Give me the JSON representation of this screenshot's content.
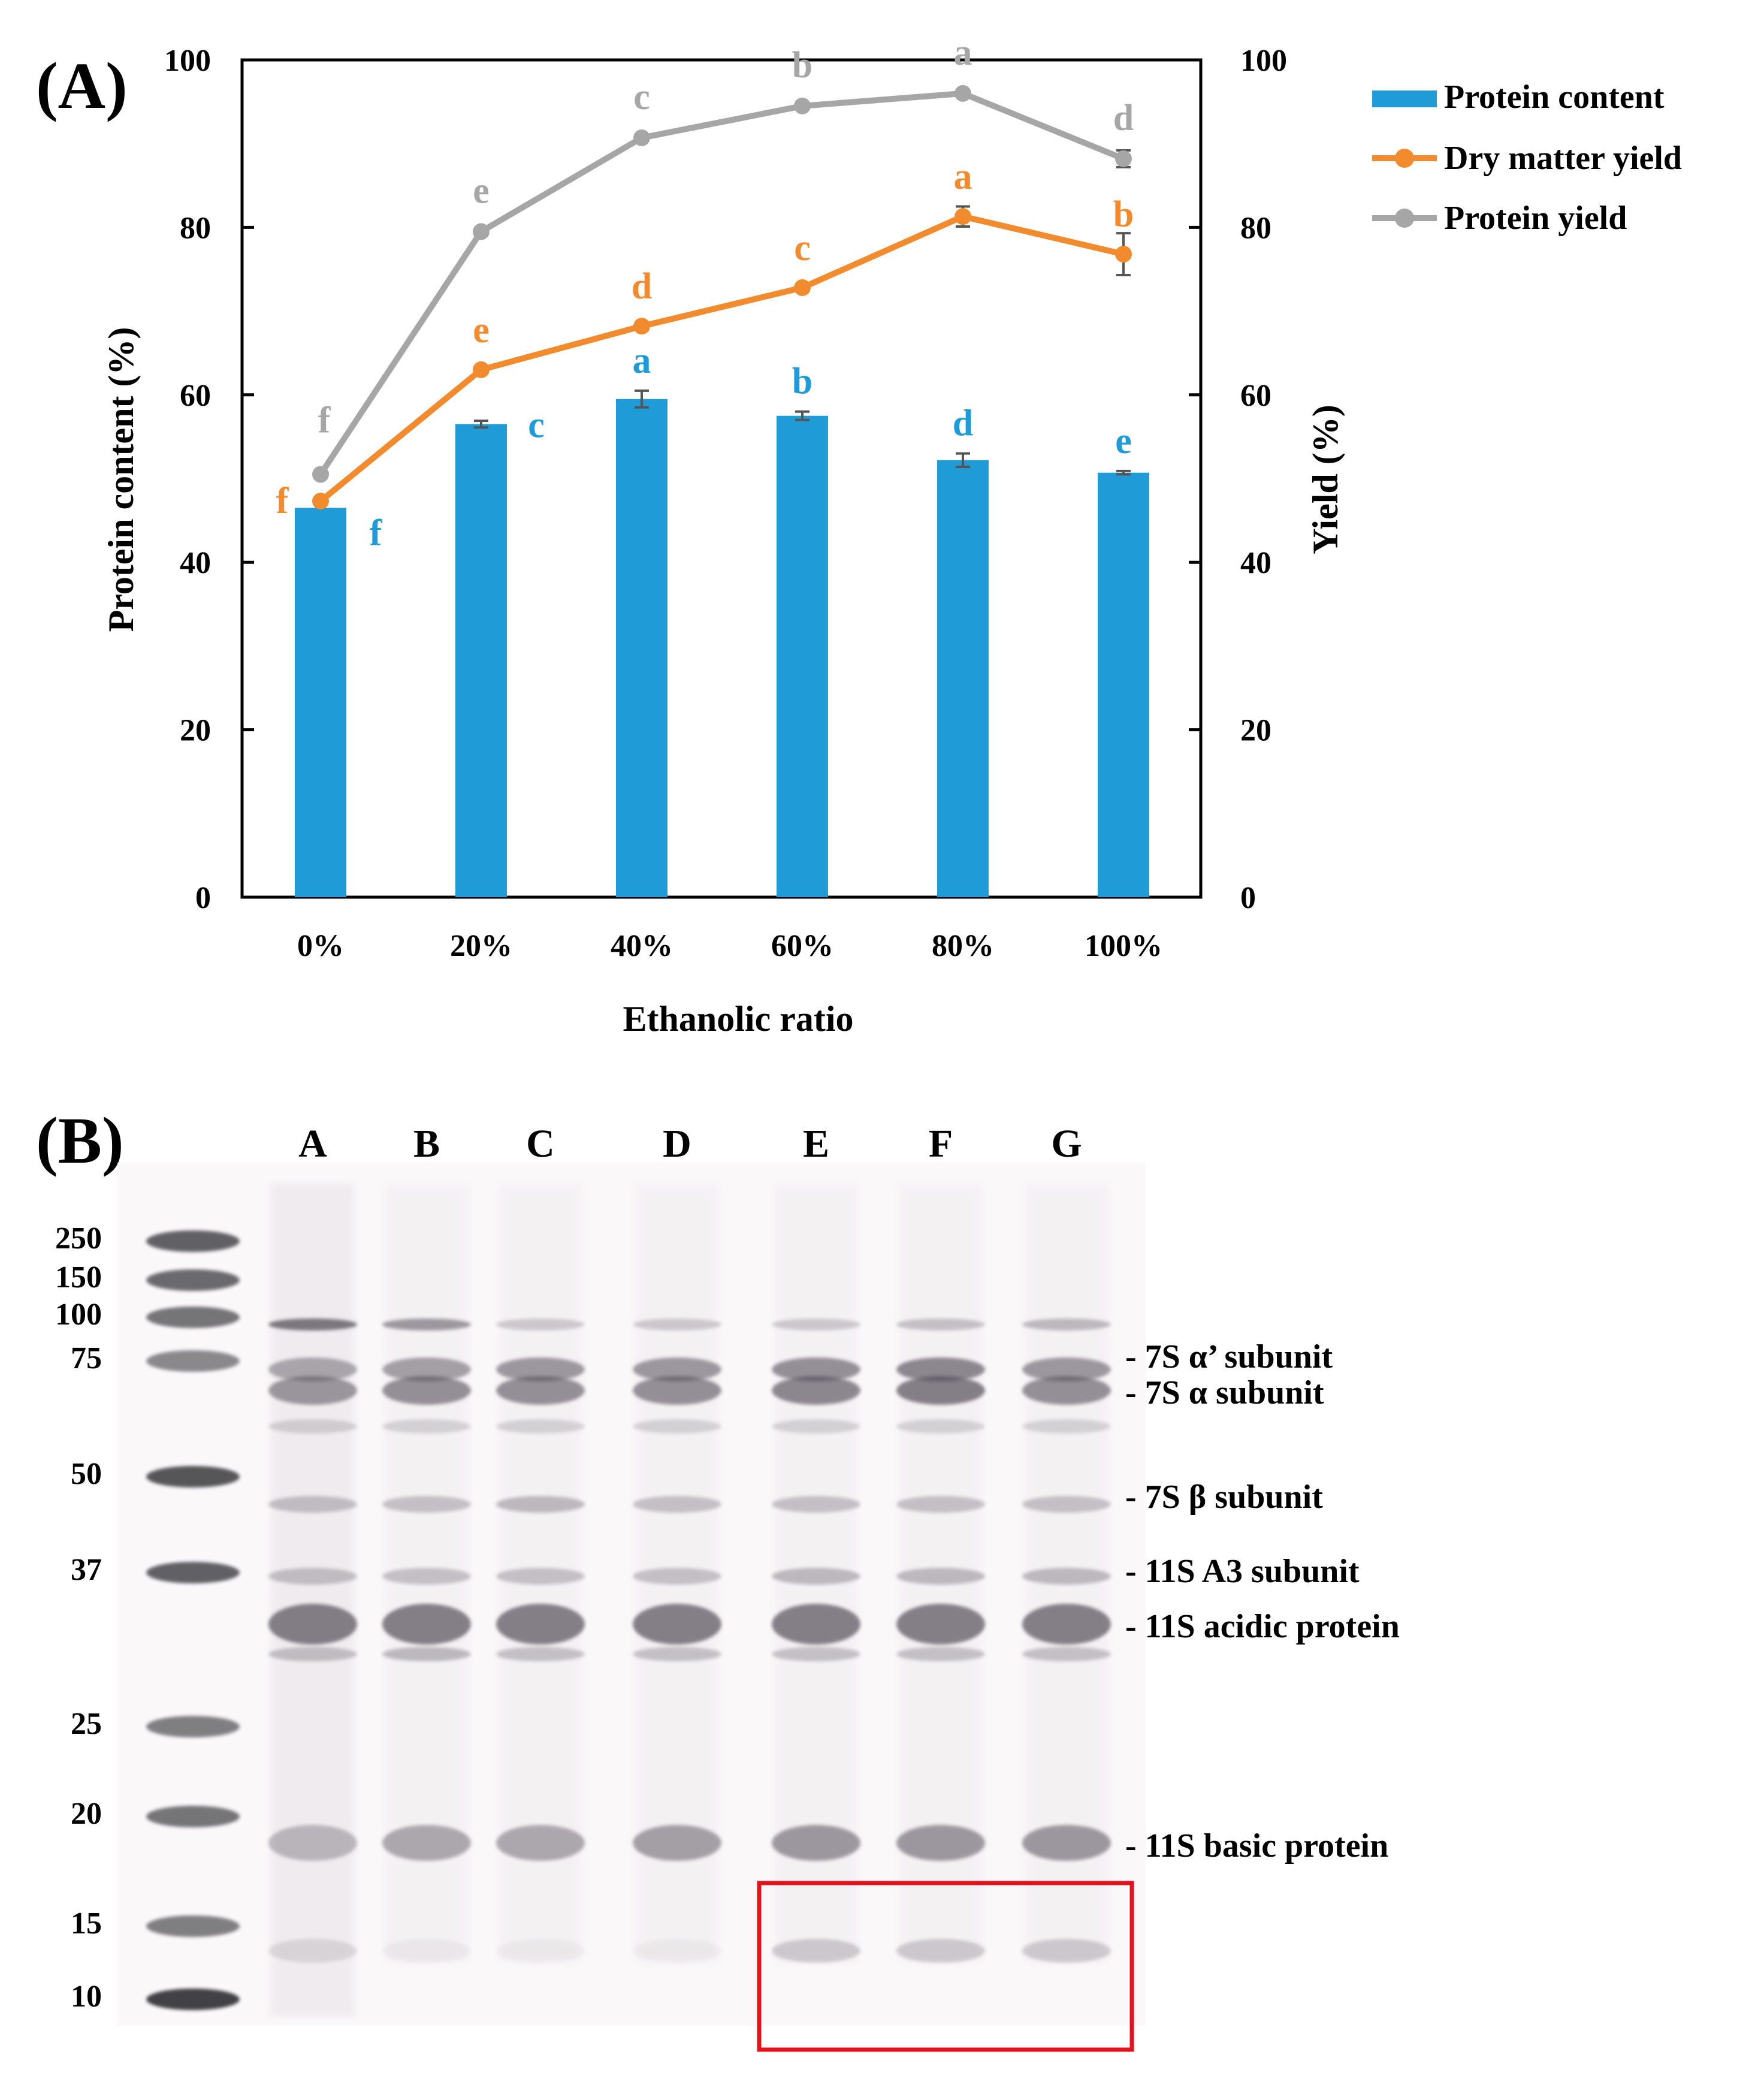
{
  "panel_a_label": "(A)",
  "panel_b_label": "(B)",
  "colors": {
    "protein_content": "#1f9bd7",
    "dry_matter_yield": "#f28a2e",
    "protein_yield": "#a6a6a6",
    "highlight_box": "#e3121b"
  },
  "chart_data": {
    "type": "bar+line",
    "xlabel": "Ethanolic ratio",
    "ylabel_left": "Protein content (%)",
    "ylabel_right": "Yield (%)",
    "ylim_left": [
      0,
      100
    ],
    "ylim_right": [
      0,
      100
    ],
    "yticks": [
      "0",
      "20",
      "40",
      "60",
      "80",
      "100"
    ],
    "categories": [
      "0%",
      "20%",
      "40%",
      "60%",
      "80%",
      "100%"
    ],
    "legend": [
      "Protein content",
      "Dry matter yield",
      "Protein yield"
    ],
    "series": [
      {
        "name": "Protein content",
        "kind": "bar",
        "axis": "left",
        "values": [
          46.5,
          56.5,
          59.5,
          57.5,
          52.2,
          50.7
        ],
        "errors": [
          0.0,
          0.4,
          1.0,
          0.5,
          0.8,
          0.2
        ],
        "letters": [
          "f",
          "c",
          "a",
          "b",
          "d",
          "e"
        ]
      },
      {
        "name": "Dry matter yield",
        "kind": "line",
        "axis": "right",
        "values": [
          47.3,
          63.0,
          68.2,
          72.8,
          81.3,
          76.8
        ],
        "errors": [
          0.0,
          0.0,
          0.0,
          0.0,
          1.2,
          2.5
        ],
        "letters": [
          "f",
          "e",
          "d",
          "c",
          "a",
          "b"
        ]
      },
      {
        "name": "Protein yield",
        "kind": "line",
        "axis": "right",
        "values": [
          50.5,
          79.5,
          90.7,
          94.5,
          96.0,
          88.2
        ],
        "errors": [
          0.0,
          0.0,
          0.0,
          0.0,
          0.0,
          1.0
        ],
        "letters": [
          "f",
          "e",
          "c",
          "b",
          "a",
          "d"
        ]
      }
    ]
  },
  "gel": {
    "lanes": [
      "A",
      "B",
      "C",
      "D",
      "E",
      "F",
      "G"
    ],
    "markers": [
      "250",
      "150",
      "100",
      "75",
      "50",
      "37",
      "25",
      "20",
      "15",
      "10"
    ],
    "band_labels": [
      "- 7S α’ subunit",
      "- 7S α subunit",
      "- 7S β subunit",
      "- 11S A3 subunit",
      "- 11S acidic protein",
      "- 11S basic protein"
    ]
  }
}
